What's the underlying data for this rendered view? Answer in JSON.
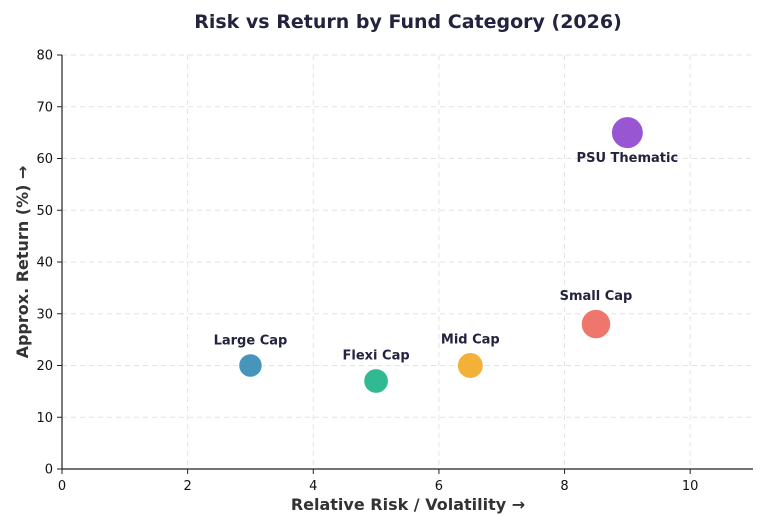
{
  "chart_data": {
    "type": "scatter",
    "title": "Risk vs Return by Fund Category (2026)",
    "xlabel": "Relative Risk / Volatility  →",
    "ylabel": "Approx. Return (%)  →",
    "xlim": [
      0,
      11
    ],
    "ylim": [
      0,
      80
    ],
    "xticks": [
      0,
      2,
      4,
      6,
      8,
      10
    ],
    "yticks": [
      0,
      10,
      20,
      30,
      40,
      50,
      60,
      70,
      80
    ],
    "grid": true,
    "points": [
      {
        "label": "Large Cap",
        "x": 3,
        "y": 20,
        "color": "#2e86b0",
        "size": 1,
        "label_position": "above"
      },
      {
        "label": "Flexi Cap",
        "x": 5,
        "y": 17,
        "color": "#15b083",
        "size": 1.05,
        "label_position": "above"
      },
      {
        "label": "Mid Cap",
        "x": 6.5,
        "y": 20,
        "color": "#f3a61c",
        "size": 1.1,
        "label_position": "above"
      },
      {
        "label": "Small Cap",
        "x": 8.5,
        "y": 28,
        "color": "#ec6358",
        "size": 1.25,
        "label_position": "above"
      },
      {
        "label": "PSU Thematic",
        "x": 9,
        "y": 65,
        "color": "#8a3fcc",
        "size": 1.35,
        "label_position": "below"
      }
    ]
  }
}
